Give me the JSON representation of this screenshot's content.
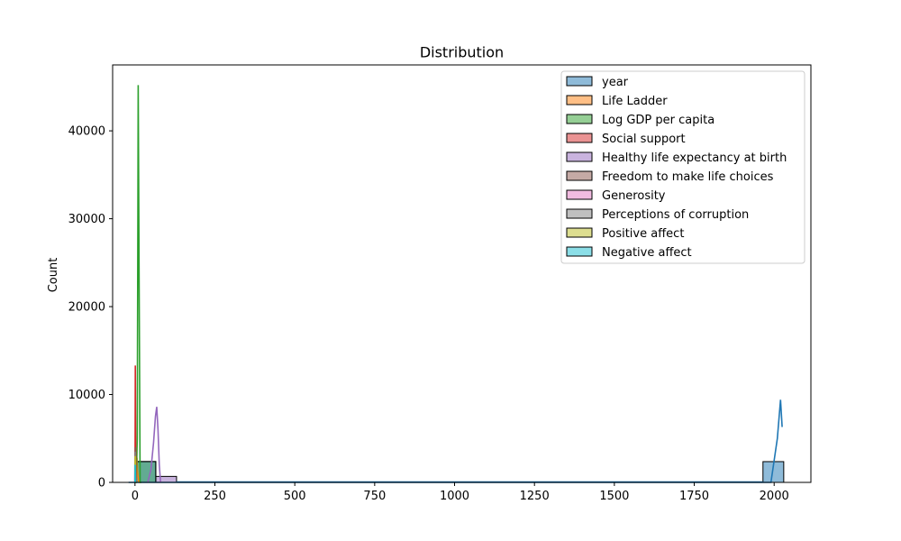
{
  "chart_data": {
    "type": "bar",
    "title": "Distribution",
    "xlabel": "",
    "ylabel": "Count",
    "xlim": [
      -70,
      2115
    ],
    "ylim": [
      0,
      47500
    ],
    "x_ticks": [
      0,
      250,
      500,
      750,
      1000,
      1250,
      1500,
      1750,
      2000
    ],
    "y_ticks": [
      0,
      10000,
      20000,
      30000,
      40000
    ],
    "grid": false,
    "legend_position": "top-right",
    "series": [
      {
        "name": "year",
        "color": "#1f77b4",
        "bars": [
          {
            "x0": 1965,
            "x1": 2030,
            "count": 2363
          }
        ],
        "kde": {
          "x": [
            -20,
            100,
            500,
            1000,
            1500,
            1960,
            1990,
            2010,
            2020,
            2025
          ],
          "y": [
            0,
            0,
            0,
            0,
            0,
            0,
            0,
            5000,
            9400,
            6300
          ]
        }
      },
      {
        "name": "Life Ladder",
        "color": "#ff7f0e",
        "bars": [
          {
            "x0": 0,
            "x1": 65,
            "count": 2363
          }
        ],
        "kde": {
          "x": [
            0,
            4,
            6,
            8,
            12
          ],
          "y": [
            0,
            1200,
            2800,
            1200,
            0
          ]
        }
      },
      {
        "name": "Log GDP per capita",
        "color": "#2ca02c",
        "bars": [
          {
            "x0": 0,
            "x1": 65,
            "count": 2363
          }
        ],
        "kde": {
          "x": [
            0,
            4,
            7,
            9,
            10,
            12,
            16,
            20
          ],
          "y": [
            0,
            0,
            5000,
            30000,
            45200,
            30000,
            0,
            0
          ]
        }
      },
      {
        "name": "Social support",
        "color": "#d62728",
        "bars": [
          {
            "x0": 0,
            "x1": 65,
            "count": 2363
          }
        ],
        "kde": {
          "x": [
            0,
            0.5,
            1,
            2,
            4
          ],
          "y": [
            0,
            6000,
            13300,
            4000,
            0
          ]
        }
      },
      {
        "name": "Healthy life expectancy at birth",
        "color": "#9467bd",
        "bars": [
          {
            "x0": 0,
            "x1": 65,
            "count": 2363
          },
          {
            "x0": 65,
            "x1": 130,
            "count": 680
          }
        ],
        "kde": {
          "x": [
            40,
            50,
            58,
            64,
            68,
            72,
            76,
            80
          ],
          "y": [
            0,
            1500,
            4500,
            7500,
            8600,
            6000,
            2000,
            0
          ]
        }
      },
      {
        "name": "Freedom to make life choices",
        "color": "#8c564b",
        "bars": [
          {
            "x0": 0,
            "x1": 65,
            "count": 2363
          }
        ],
        "kde": {
          "x": [
            0,
            0.5,
            1,
            2
          ],
          "y": [
            0,
            2000,
            4000,
            0
          ]
        }
      },
      {
        "name": "Generosity",
        "color": "#e377c2",
        "bars": [
          {
            "x0": 0,
            "x1": 65,
            "count": 2363
          }
        ],
        "kde": {
          "x": [
            -1,
            0,
            1
          ],
          "y": [
            0,
            3000,
            0
          ]
        }
      },
      {
        "name": "Perceptions of corruption",
        "color": "#7f7f7f",
        "bars": [
          {
            "x0": 0,
            "x1": 65,
            "count": 2363
          }
        ],
        "kde": {
          "x": [
            0,
            0.5,
            1,
            2
          ],
          "y": [
            0,
            2500,
            3500,
            0
          ]
        }
      },
      {
        "name": "Positive affect",
        "color": "#bcbd22",
        "bars": [
          {
            "x0": 0,
            "x1": 65,
            "count": 2363
          }
        ],
        "kde": {
          "x": [
            0,
            0.5,
            1,
            2
          ],
          "y": [
            0,
            2500,
            3000,
            0
          ]
        }
      },
      {
        "name": "Negative affect",
        "color": "#17becf",
        "bars": [
          {
            "x0": 0,
            "x1": 65,
            "count": 2363
          }
        ],
        "kde": {
          "x": [
            0,
            0.5,
            1,
            2
          ],
          "y": [
            0,
            2000,
            1500,
            0
          ]
        }
      }
    ]
  }
}
